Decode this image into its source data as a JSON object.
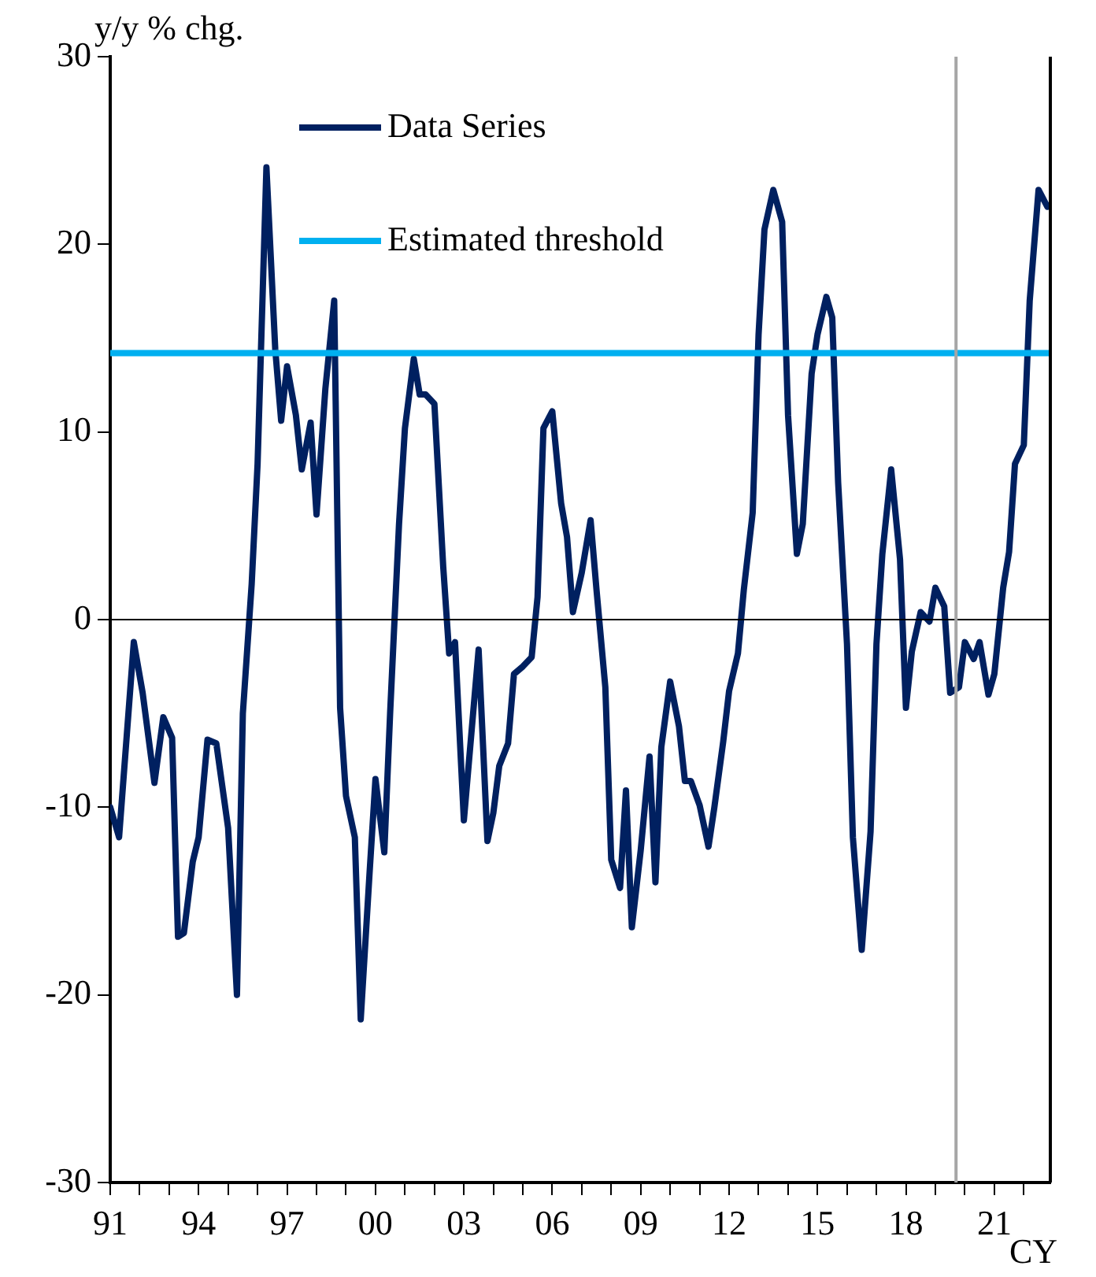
{
  "chart_data": {
    "type": "line",
    "ylabel": "y/y % chg.",
    "xlabel": "CY",
    "xlim": [
      1991,
      2022.9
    ],
    "ylim": [
      -30,
      30
    ],
    "yticks": [
      -30,
      -20,
      -10,
      0,
      10,
      20,
      30
    ],
    "xticks": [
      {
        "value": 1991,
        "label": "91"
      },
      {
        "value": 1992,
        "label": null
      },
      {
        "value": 1993,
        "label": null
      },
      {
        "value": 1994,
        "label": "94"
      },
      {
        "value": 1995,
        "label": null
      },
      {
        "value": 1996,
        "label": null
      },
      {
        "value": 1997,
        "label": "97"
      },
      {
        "value": 1998,
        "label": null
      },
      {
        "value": 1999,
        "label": null
      },
      {
        "value": 2000,
        "label": "00"
      },
      {
        "value": 2001,
        "label": null
      },
      {
        "value": 2002,
        "label": null
      },
      {
        "value": 2003,
        "label": "03"
      },
      {
        "value": 2004,
        "label": null
      },
      {
        "value": 2005,
        "label": null
      },
      {
        "value": 2006,
        "label": "06"
      },
      {
        "value": 2007,
        "label": null
      },
      {
        "value": 2008,
        "label": null
      },
      {
        "value": 2009,
        "label": "09"
      },
      {
        "value": 2010,
        "label": null
      },
      {
        "value": 2011,
        "label": null
      },
      {
        "value": 2012,
        "label": "12"
      },
      {
        "value": 2013,
        "label": null
      },
      {
        "value": 2014,
        "label": null
      },
      {
        "value": 2015,
        "label": "15"
      },
      {
        "value": 2016,
        "label": null
      },
      {
        "value": 2017,
        "label": null
      },
      {
        "value": 2018,
        "label": "18"
      },
      {
        "value": 2019,
        "label": null
      },
      {
        "value": 2020,
        "label": null
      },
      {
        "value": 2021,
        "label": "21"
      },
      {
        "value": 2022,
        "label": null
      }
    ],
    "grid": false,
    "legend": "top left",
    "marker": "none",
    "line_style": "solid",
    "series": [
      {
        "name": "Data Series",
        "color": "#002060",
        "x": [
          1991.0,
          1991.3,
          1991.8,
          1992.1,
          1992.5,
          1992.8,
          1993.1,
          1993.3,
          1993.5,
          1993.8,
          1994.0,
          1994.3,
          1994.6,
          1995.0,
          1995.3,
          1995.5,
          1995.8,
          1996.0,
          1996.3,
          1996.6,
          1996.8,
          1997.0,
          1997.3,
          1997.5,
          1997.8,
          1998.0,
          1998.3,
          1998.6,
          1998.8,
          1999.0,
          1999.3,
          1999.5,
          1999.8,
          2000.0,
          2000.3,
          2000.5,
          2000.8,
          2001.0,
          2001.3,
          2001.5,
          2001.7,
          2002.0,
          2002.3,
          2002.5,
          2002.7,
          2003.0,
          2003.5,
          2003.8,
          2004.0,
          2004.2,
          2004.5,
          2004.7,
          2005.0,
          2005.3,
          2005.5,
          2005.7,
          2006.0,
          2006.3,
          2006.5,
          2006.7,
          2007.0,
          2007.3,
          2007.5,
          2007.8,
          2008.0,
          2008.3,
          2008.5,
          2008.7,
          2009.0,
          2009.3,
          2009.5,
          2009.7,
          2010.0,
          2010.3,
          2010.5,
          2010.7,
          2011.0,
          2011.3,
          2011.5,
          2011.8,
          2012.0,
          2012.3,
          2012.5,
          2012.8,
          2013.0,
          2013.2,
          2013.5,
          2013.8,
          2014.0,
          2014.3,
          2014.5,
          2014.8,
          2015.0,
          2015.3,
          2015.5,
          2015.7,
          2016.0,
          2016.2,
          2016.5,
          2016.8,
          2017.0,
          2017.2,
          2017.5,
          2017.8,
          2018.0,
          2018.2,
          2018.5,
          2018.8,
          2019.0,
          2019.3,
          2019.5,
          2019.8,
          2020.0,
          2020.3,
          2020.5,
          2020.8,
          2021.0,
          2021.3,
          2021.5,
          2021.7,
          2022.0,
          2022.2,
          2022.5,
          2022.8
        ],
        "values": [
          -10.0,
          -11.6,
          -1.2,
          -3.9,
          -8.7,
          -5.2,
          -6.3,
          -16.9,
          -16.7,
          -12.9,
          -11.6,
          -6.4,
          -6.6,
          -11.1,
          -20.0,
          -5.0,
          1.9,
          8.3,
          24.1,
          14.4,
          10.6,
          13.5,
          10.9,
          8.0,
          10.5,
          5.6,
          12.3,
          17.0,
          -4.7,
          -9.4,
          -11.6,
          -21.3,
          -13.5,
          -8.5,
          -12.4,
          -4.9,
          5.1,
          10.2,
          13.9,
          12.0,
          12.0,
          11.5,
          2.8,
          -1.8,
          -1.2,
          -10.7,
          -1.6,
          -11.8,
          -10.3,
          -7.8,
          -6.6,
          -2.9,
          -2.5,
          -2.0,
          1.2,
          10.2,
          11.1,
          6.2,
          4.4,
          0.4,
          2.5,
          5.3,
          1.6,
          -3.6,
          -12.8,
          -14.3,
          -9.1,
          -16.4,
          -12.3,
          -7.3,
          -14.0,
          -6.8,
          -3.3,
          -5.7,
          -8.6,
          -8.6,
          -9.9,
          -12.1,
          -10.0,
          -6.5,
          -3.8,
          -1.8,
          1.6,
          5.7,
          15.2,
          20.8,
          22.9,
          21.2,
          10.9,
          3.5,
          5.1,
          13.1,
          15.2,
          17.2,
          16.1,
          7.3,
          -1.3,
          -11.6,
          -17.6,
          -11.3,
          -1.3,
          3.5,
          8.0,
          3.2,
          -4.7,
          -1.7,
          0.4,
          -0.1,
          1.7,
          0.7,
          -3.9,
          -3.6,
          -1.2,
          -2.1,
          -1.2,
          -4.0,
          -2.9,
          1.7,
          3.6,
          8.3,
          9.3,
          17.0,
          22.9,
          22.0
        ]
      },
      {
        "name": "Estimated threshold",
        "color": "#00b0f0",
        "x": [
          1991,
          2022.9
        ],
        "values": [
          14.2,
          14.2
        ]
      }
    ],
    "ref_lines": [
      {
        "axis": "y",
        "value": 0,
        "color": "#000000"
      },
      {
        "axis": "x",
        "value": 2019.7,
        "color": "#a6a6a6"
      }
    ]
  }
}
